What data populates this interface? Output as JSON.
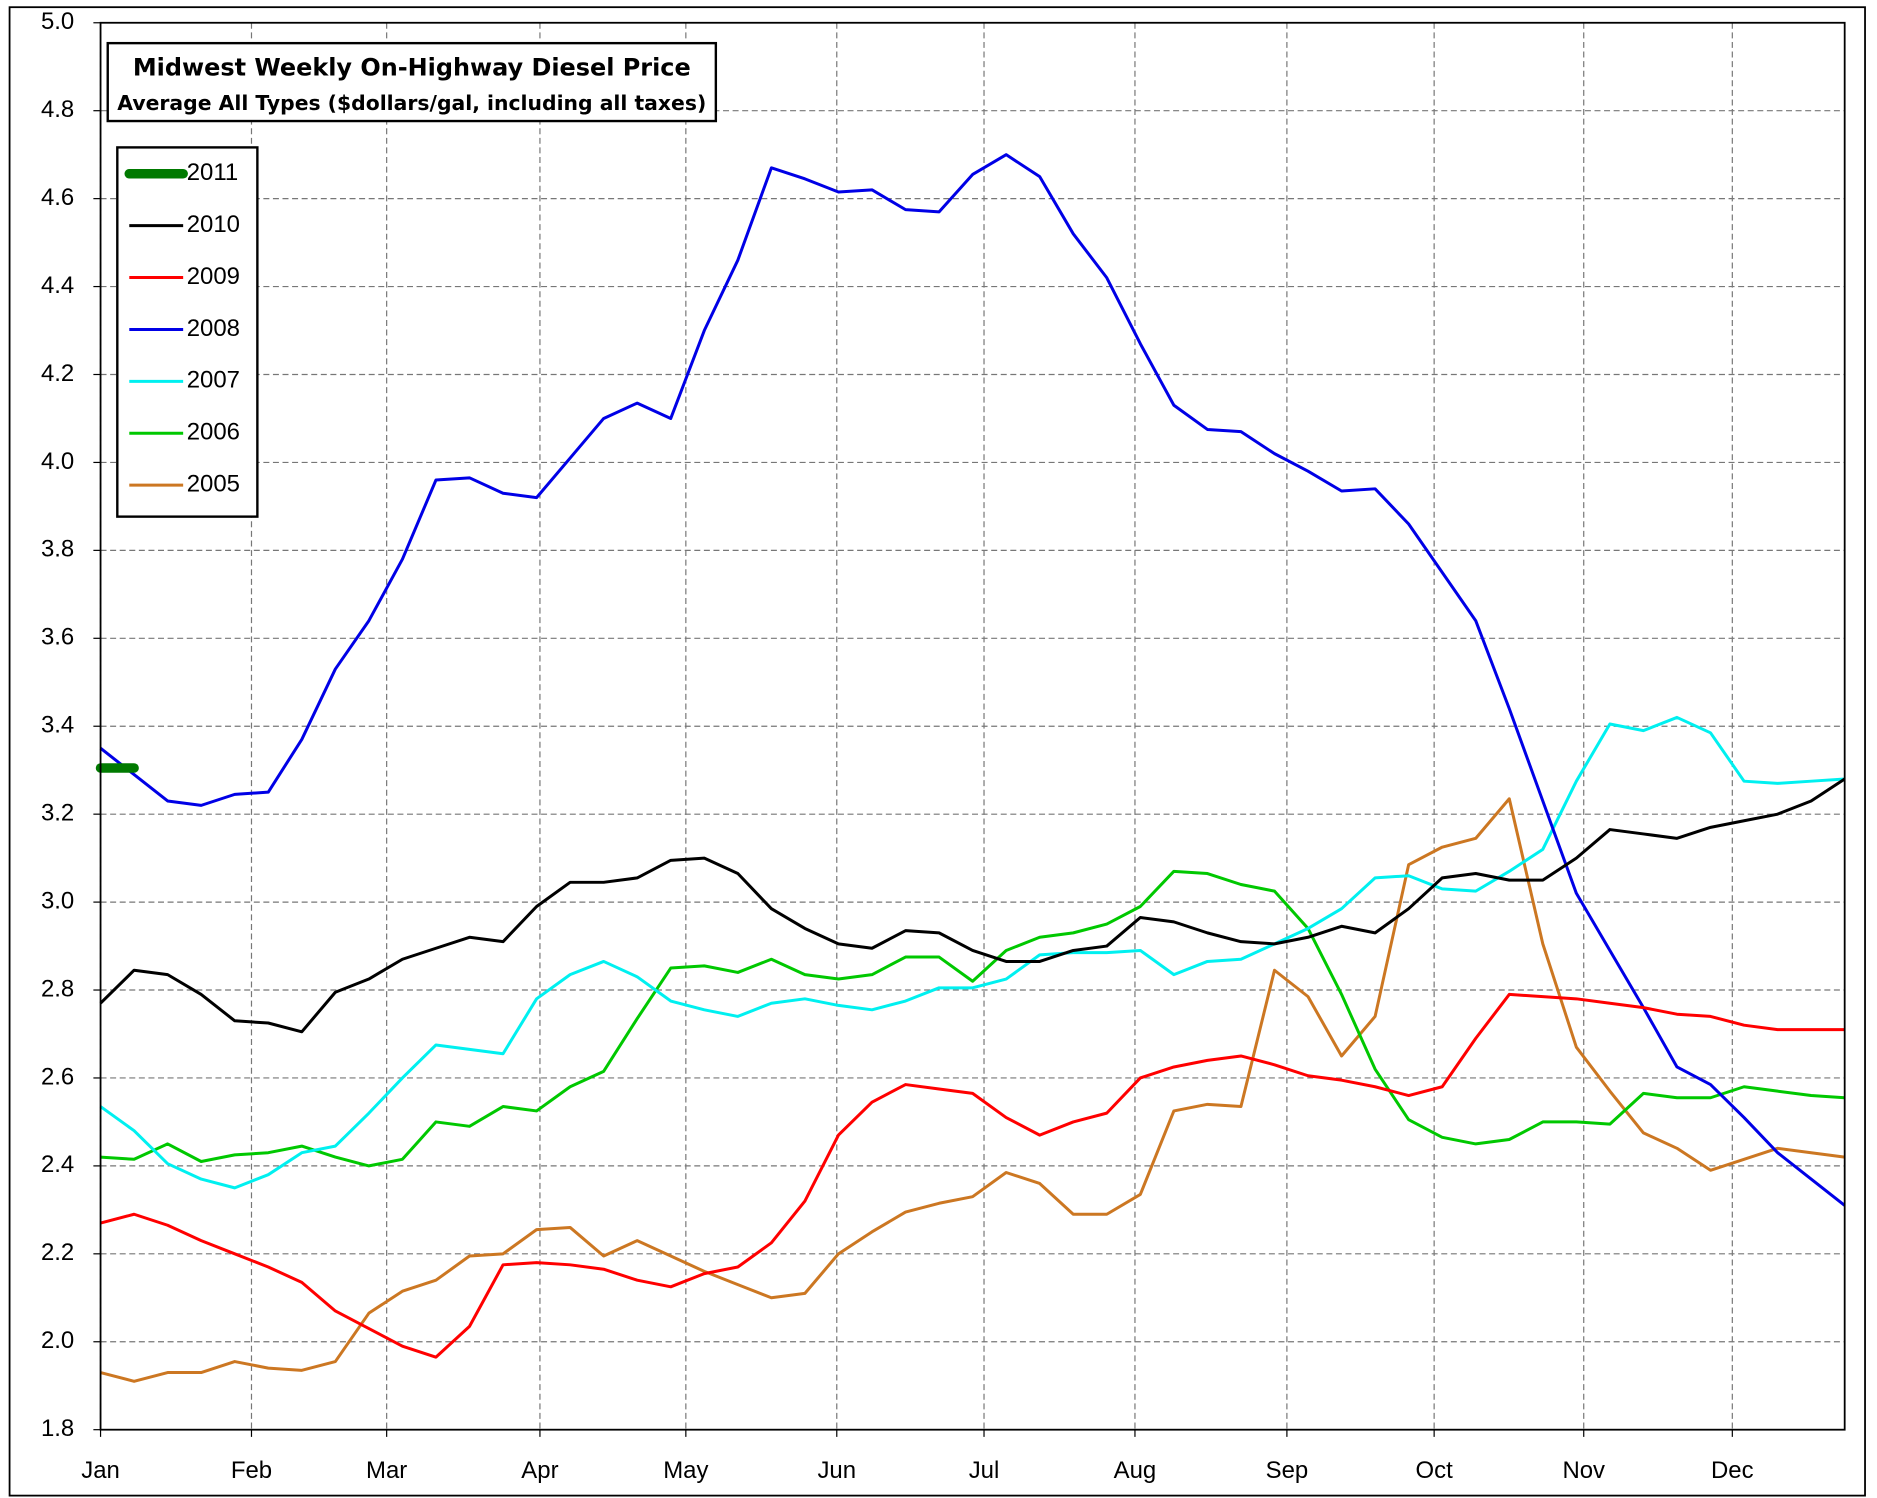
{
  "chart_data": {
    "type": "line",
    "title": "Midwest Weekly On-Highway Diesel Price",
    "subtitle": "Average All Types ($dollars/gal, including all taxes)",
    "x": [
      0,
      1,
      2,
      3,
      4,
      5,
      6,
      7,
      8,
      9,
      10,
      11,
      12,
      13,
      14,
      15,
      16,
      17,
      18,
      19,
      20,
      21,
      22,
      23,
      24,
      25,
      26,
      27,
      28,
      29,
      30,
      31,
      32,
      33,
      34,
      35,
      36,
      37,
      38,
      39,
      40,
      41,
      42,
      43,
      44,
      45,
      46,
      47,
      48,
      49,
      50,
      51,
      52
    ],
    "xlim": [
      0,
      52
    ],
    "xticks": [
      {
        "value": 0,
        "label": "Jan"
      },
      {
        "value": 4.5,
        "label": "Feb"
      },
      {
        "value": 8.53,
        "label": "Mar"
      },
      {
        "value": 13.1,
        "label": "Apr"
      },
      {
        "value": 17.45,
        "label": "May"
      },
      {
        "value": 21.95,
        "label": "Jun"
      },
      {
        "value": 26.34,
        "label": "Jul"
      },
      {
        "value": 30.84,
        "label": "Aug"
      },
      {
        "value": 35.37,
        "label": "Sep"
      },
      {
        "value": 39.76,
        "label": "Oct"
      },
      {
        "value": 44.22,
        "label": "Nov"
      },
      {
        "value": 48.65,
        "label": "Dec"
      }
    ],
    "ylim": [
      1.8,
      5.0
    ],
    "yticks": [
      1.8,
      {
        "value": 2,
        "label": "2.0"
      },
      2.2,
      2.4,
      2.6,
      2.8,
      {
        "value": 3,
        "label": "3.0"
      },
      3.2,
      3.4,
      3.6,
      3.8,
      {
        "value": 4,
        "label": "4.0"
      },
      4.2,
      4.4,
      4.6,
      4.8,
      {
        "value": 5,
        "label": "5.0"
      }
    ],
    "grid": true,
    "legend": "upper left",
    "series": [
      {
        "name": "2011",
        "color": "#007a00",
        "width": 8,
        "values": [
          3.305,
          3.305,
          null,
          null,
          null,
          null,
          null,
          null,
          null,
          null,
          null,
          null,
          null,
          null,
          null,
          null,
          null,
          null,
          null,
          null,
          null,
          null,
          null,
          null,
          null,
          null,
          null,
          null,
          null,
          null,
          null,
          null,
          null,
          null,
          null,
          null,
          null,
          null,
          null,
          null,
          null,
          null,
          null,
          null,
          null,
          null,
          null,
          null,
          null,
          null,
          null,
          null,
          null
        ]
      },
      {
        "name": "2010",
        "color": "#000000",
        "width": 2.5,
        "values": [
          2.77,
          2.845,
          2.835,
          2.79,
          2.73,
          2.725,
          2.705,
          2.795,
          2.825,
          2.87,
          2.895,
          2.92,
          2.91,
          2.99,
          3.045,
          3.045,
          3.055,
          3.095,
          3.1,
          3.065,
          2.985,
          2.94,
          2.905,
          2.895,
          2.935,
          2.93,
          2.89,
          2.865,
          2.865,
          2.89,
          2.9,
          2.965,
          2.955,
          2.93,
          2.91,
          2.905,
          2.92,
          2.945,
          2.93,
          2.985,
          3.055,
          3.065,
          3.05,
          3.05,
          3.1,
          3.165,
          3.155,
          3.145,
          3.17,
          3.185,
          3.2,
          3.23,
          3.28
        ]
      },
      {
        "name": "2009",
        "color": "#ff0000",
        "width": 2.5,
        "values": [
          2.27,
          2.29,
          2.265,
          2.23,
          2.2,
          2.17,
          2.135,
          2.07,
          2.03,
          1.99,
          1.965,
          2.035,
          2.175,
          2.18,
          2.175,
          2.165,
          2.14,
          2.125,
          2.155,
          2.17,
          2.225,
          2.32,
          2.47,
          2.545,
          2.585,
          2.575,
          2.565,
          2.51,
          2.47,
          2.5,
          2.52,
          2.6,
          2.625,
          2.64,
          2.65,
          2.63,
          2.605,
          2.595,
          2.58,
          2.56,
          2.58,
          2.69,
          2.79,
          2.785,
          2.78,
          2.77,
          2.76,
          2.745,
          2.74,
          2.72,
          2.71,
          2.71,
          2.71
        ]
      },
      {
        "name": "2008",
        "color": "#0000e6",
        "width": 2.5,
        "values": [
          3.35,
          3.29,
          3.23,
          3.22,
          3.245,
          3.25,
          3.37,
          3.53,
          3.64,
          3.78,
          3.96,
          3.965,
          3.93,
          3.92,
          4.01,
          4.1,
          4.135,
          4.1,
          4.3,
          4.46,
          4.67,
          4.645,
          4.615,
          4.62,
          4.575,
          4.57,
          4.655,
          4.7,
          4.65,
          4.52,
          4.42,
          4.27,
          4.13,
          4.075,
          4.07,
          4.02,
          3.98,
          3.935,
          3.94,
          3.86,
          3.75,
          3.64,
          3.44,
          3.23,
          3.02,
          2.89,
          2.76,
          2.625,
          2.585,
          2.51,
          2.43,
          2.37,
          2.31
        ]
      },
      {
        "name": "2007",
        "color": "#00f0f0",
        "width": 2.5,
        "values": [
          2.535,
          2.48,
          2.405,
          2.37,
          2.35,
          2.38,
          2.43,
          2.445,
          2.52,
          2.6,
          2.675,
          2.665,
          2.655,
          2.78,
          2.835,
          2.865,
          2.83,
          2.775,
          2.755,
          2.74,
          2.77,
          2.78,
          2.765,
          2.755,
          2.775,
          2.805,
          2.805,
          2.825,
          2.88,
          2.885,
          2.885,
          2.89,
          2.835,
          2.865,
          2.87,
          2.905,
          2.94,
          2.985,
          3.055,
          3.06,
          3.03,
          3.025,
          3.07,
          3.12,
          3.275,
          3.405,
          3.39,
          3.42,
          3.385,
          3.275,
          3.27,
          3.275,
          3.28
        ]
      },
      {
        "name": "2006",
        "color": "#00c800",
        "width": 2.5,
        "values": [
          2.42,
          2.415,
          2.45,
          2.41,
          2.425,
          2.43,
          2.445,
          2.42,
          2.4,
          2.415,
          2.5,
          2.49,
          2.535,
          2.525,
          2.58,
          2.615,
          2.735,
          2.85,
          2.855,
          2.84,
          2.87,
          2.835,
          2.825,
          2.835,
          2.875,
          2.875,
          2.82,
          2.89,
          2.92,
          2.93,
          2.95,
          2.99,
          3.07,
          3.065,
          3.04,
          3.025,
          2.94,
          2.79,
          2.62,
          2.505,
          2.465,
          2.45,
          2.46,
          2.5,
          2.5,
          2.495,
          2.565,
          2.555,
          2.555,
          2.58,
          2.57,
          2.56,
          2.555
        ]
      },
      {
        "name": "2005",
        "color": "#cc7722",
        "width": 2.5,
        "values": [
          1.93,
          1.91,
          1.93,
          1.93,
          1.955,
          1.94,
          1.935,
          1.955,
          2.065,
          2.115,
          2.14,
          2.195,
          2.2,
          2.255,
          2.26,
          2.195,
          2.23,
          2.195,
          2.16,
          2.13,
          2.1,
          2.11,
          2.2,
          2.25,
          2.295,
          2.315,
          2.33,
          2.385,
          2.36,
          2.29,
          2.29,
          2.335,
          2.525,
          2.54,
          2.535,
          2.845,
          2.785,
          2.65,
          2.74,
          3.085,
          3.125,
          3.145,
          3.235,
          2.905,
          2.67,
          2.57,
          2.475,
          2.44,
          2.39,
          2.415,
          2.44,
          2.43,
          2.42
        ]
      }
    ]
  }
}
